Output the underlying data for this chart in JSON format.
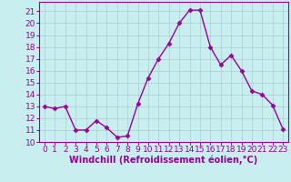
{
  "x": [
    0,
    1,
    2,
    3,
    4,
    5,
    6,
    7,
    8,
    9,
    10,
    11,
    12,
    13,
    14,
    15,
    16,
    17,
    18,
    19,
    20,
    21,
    22,
    23
  ],
  "y": [
    13.0,
    12.8,
    13.0,
    11.0,
    11.0,
    11.8,
    11.2,
    10.4,
    10.5,
    13.2,
    15.4,
    17.0,
    18.3,
    20.0,
    21.1,
    21.1,
    18.0,
    16.5,
    17.3,
    16.0,
    14.3,
    14.0,
    13.1,
    11.1
  ],
  "line_color": "#990099",
  "marker": "D",
  "marker_size": 2.5,
  "line_width": 1.0,
  "xlabel": "Windchill (Refroidissement éolien,°C)",
  "xlabel_fontsize": 7,
  "tick_fontsize": 6.5,
  "xlim": [
    -0.5,
    23.5
  ],
  "ylim": [
    10,
    21.8
  ],
  "yticks": [
    10,
    11,
    12,
    13,
    14,
    15,
    16,
    17,
    18,
    19,
    20,
    21
  ],
  "xticks": [
    0,
    1,
    2,
    3,
    4,
    5,
    6,
    7,
    8,
    9,
    10,
    11,
    12,
    13,
    14,
    15,
    16,
    17,
    18,
    19,
    20,
    21,
    22,
    23
  ],
  "background_color": "#c8eef0",
  "grid_color": "#aacccc",
  "grid_linewidth": 0.5
}
